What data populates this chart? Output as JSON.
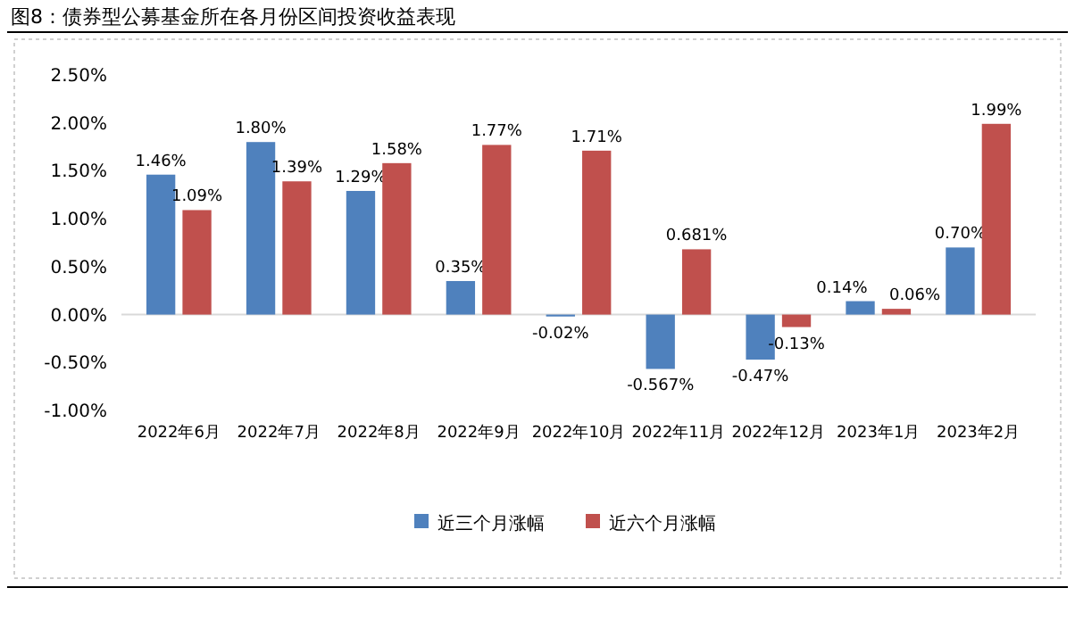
{
  "chart_data": {
    "type": "bar",
    "title": "图8：债券型公募基金所在各月份区间投资收益表现",
    "categories": [
      "2022年6月",
      "2022年7月",
      "2022年8月",
      "2022年9月",
      "2022年10月",
      "2022年11月",
      "2022年12月",
      "2023年1月",
      "2023年2月"
    ],
    "series": [
      {
        "name": "近三个月涨幅",
        "color": "#4f81bd",
        "values": [
          1.46,
          1.8,
          1.29,
          0.35,
          -0.02,
          -0.567,
          -0.47,
          0.14,
          0.7
        ],
        "value_labels": [
          "1.46%",
          "1.80%",
          "1.29%",
          "0.35%",
          "-0.02%",
          "-0.567%",
          "-0.47%",
          "0.14%",
          "0.70%"
        ]
      },
      {
        "name": "近六个月涨幅",
        "color": "#c0504d",
        "values": [
          1.09,
          1.39,
          1.58,
          1.77,
          1.71,
          0.681,
          -0.13,
          0.06,
          1.99
        ],
        "value_labels": [
          "1.09%",
          "1.39%",
          "1.58%",
          "1.77%",
          "1.71%",
          "0.681%",
          "-0.13%",
          "0.06%",
          "1.99%"
        ]
      }
    ],
    "ylim": [
      -1.0,
      2.5
    ],
    "yticks": [
      {
        "value": -1.0,
        "label": "-1.00%"
      },
      {
        "value": -0.5,
        "label": "-0.50%"
      },
      {
        "value": 0,
        "label": "0.00%"
      },
      {
        "value": 0.5,
        "label": "0.50%"
      },
      {
        "value": 1.0,
        "label": "1.00%"
      },
      {
        "value": 1.5,
        "label": "1.50%"
      },
      {
        "value": 2.0,
        "label": "2.00%"
      },
      {
        "value": 2.5,
        "label": "2.50%"
      }
    ],
    "legend": "bottom"
  }
}
